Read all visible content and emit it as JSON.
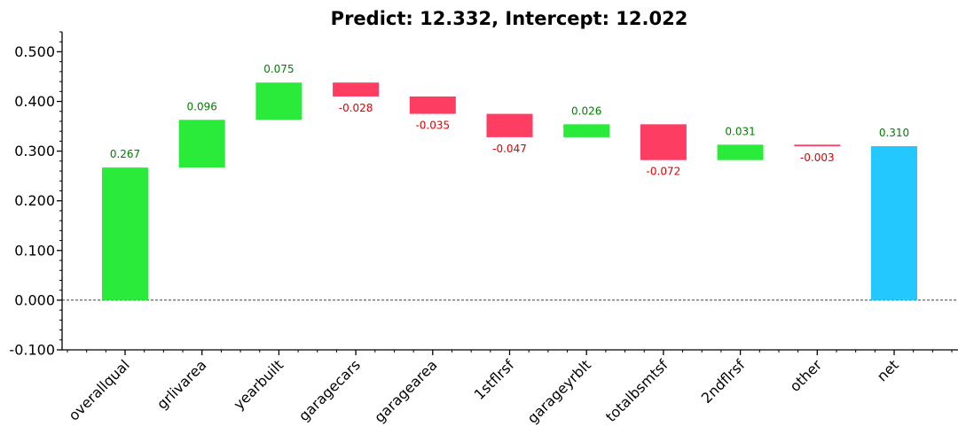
{
  "chart_data": {
    "type": "bar",
    "title": "Predict: 12.332, Intercept: 12.022",
    "xlabel": "",
    "ylabel": "",
    "ylim": [
      -0.1,
      0.54
    ],
    "yticks": [
      "-0.100",
      "0.000",
      "0.100",
      "0.200",
      "0.300",
      "0.400",
      "0.500"
    ],
    "categories": [
      "overallqual",
      "grlivarea",
      "yearbuilt",
      "garagecars",
      "garagearea",
      "1stflrsf",
      "garageyrblt",
      "totalbsmtsf",
      "2ndflrsf",
      "other",
      "net"
    ],
    "values": [
      0.267,
      0.096,
      0.075,
      -0.028,
      -0.035,
      -0.047,
      0.026,
      -0.072,
      0.031,
      -0.003,
      0.31
    ],
    "value_labels": [
      "0.267",
      "0.096",
      "0.075",
      "-0.028",
      "-0.035",
      "-0.047",
      "0.026",
      "-0.072",
      "0.031",
      "-0.003",
      "0.310"
    ],
    "bases": [
      0.0,
      0.267,
      0.363,
      0.438,
      0.41,
      0.375,
      0.328,
      0.354,
      0.282,
      0.313,
      0.0
    ],
    "kinds": [
      "pos",
      "pos",
      "pos",
      "neg",
      "neg",
      "neg",
      "pos",
      "neg",
      "pos",
      "neg",
      "net"
    ],
    "colors": {
      "positive": "#2aeb3a",
      "negative": "#fe3d63",
      "net": "#22c8ff",
      "positive_text": "#008000",
      "negative_text": "#e00000"
    },
    "zero_line": true,
    "grid": false
  }
}
